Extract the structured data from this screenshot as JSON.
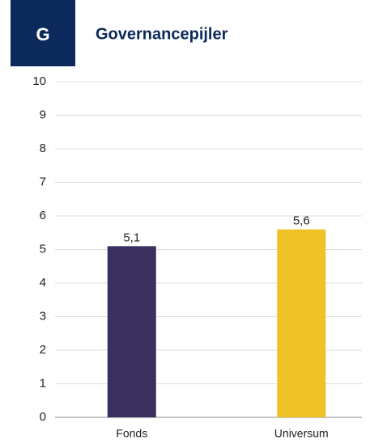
{
  "header": {
    "badge": "G",
    "title": "Governancepijler"
  },
  "chart_data": {
    "type": "bar",
    "categories": [
      "Fonds",
      "Universum"
    ],
    "values": [
      5.1,
      5.6
    ],
    "value_labels": [
      "5,1",
      "5,6"
    ],
    "colors": [
      "#3a2f5f",
      "#f0c228"
    ],
    "ylim": [
      0,
      10
    ],
    "yticks": [
      0,
      1,
      2,
      3,
      4,
      5,
      6,
      7,
      8,
      9,
      10
    ],
    "grid": true
  }
}
